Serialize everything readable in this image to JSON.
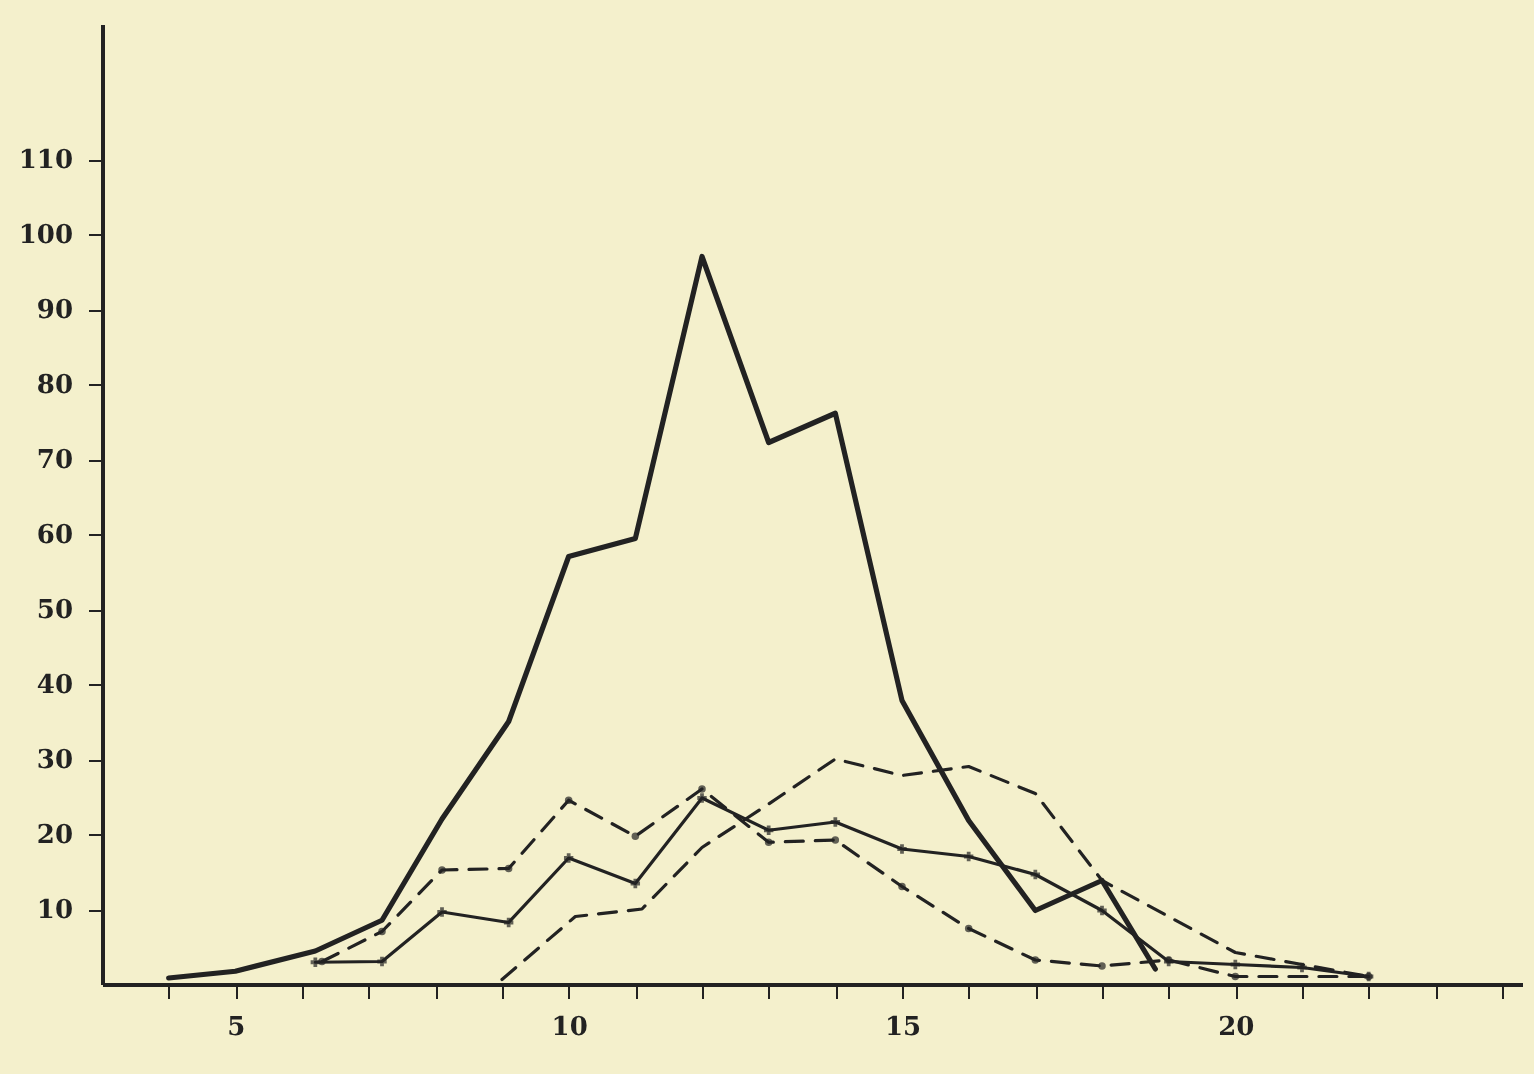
{
  "chart_data": {
    "type": "line",
    "xlim": [
      3,
      24.3
    ],
    "ylim": [
      0,
      128
    ],
    "xticks": [
      {
        "value": 4,
        "label": null
      },
      5,
      {
        "value": 6,
        "label": null
      },
      {
        "value": 7,
        "label": null
      },
      {
        "value": 8,
        "label": null
      },
      {
        "value": 9,
        "label": null
      },
      10,
      {
        "value": 11,
        "label": null
      },
      {
        "value": 12,
        "label": null
      },
      {
        "value": 13,
        "label": null
      },
      {
        "value": 14,
        "label": null
      },
      15,
      {
        "value": 16,
        "label": null
      },
      {
        "value": 17,
        "label": null
      },
      {
        "value": 18,
        "label": null
      },
      {
        "value": 19,
        "label": null
      },
      20,
      {
        "value": 21,
        "label": null
      },
      {
        "value": 22,
        "label": null
      },
      {
        "value": 23,
        "label": null
      },
      {
        "value": 24,
        "label": null
      }
    ],
    "yticks": [
      10,
      20,
      30,
      40,
      50,
      60,
      70,
      80,
      90,
      100,
      110
    ],
    "grid": false,
    "series": [
      {
        "color": "#222222",
        "line_style": "solid",
        "marker": "none",
        "x": [
          4,
          5,
          6.2,
          7.2,
          8.1,
          9.1,
          10,
          11,
          12,
          13,
          14,
          15,
          16,
          17,
          18,
          18.8
        ],
        "values": [
          0.8,
          1.7,
          4.4,
          8.5,
          22,
          35,
          57,
          59.4,
          97,
          72.2,
          76.1,
          37.8,
          21.8,
          9.8,
          13.8,
          2
        ]
      },
      {
        "color": "#222222",
        "line_style": "dashed",
        "marker": "none",
        "x": [
          9,
          10.1,
          11.1,
          12,
          13,
          14,
          15,
          16,
          17,
          18,
          20,
          22
        ],
        "values": [
          0.6,
          9,
          10,
          18.2,
          24,
          30,
          27.8,
          29,
          25.4,
          13.8,
          4.2,
          1
        ]
      },
      {
        "color": "#222222",
        "line_style": "dashed",
        "marker": "circle",
        "x": [
          6.3,
          7.2,
          8.1,
          9.1,
          10,
          11,
          12,
          13,
          14,
          15,
          16,
          17,
          18,
          19,
          20,
          22
        ],
        "values": [
          3,
          7,
          15.2,
          15.4,
          24.5,
          19.7,
          26,
          18.9,
          19.2,
          13,
          7.4,
          3.2,
          2.4,
          3.2,
          1,
          1
        ]
      },
      {
        "color": "#222222",
        "line_style": "solid",
        "marker": "cross",
        "x": [
          6.2,
          7.2,
          8.1,
          9.1,
          10,
          11,
          12,
          13,
          14,
          15,
          16,
          17,
          18,
          19,
          20,
          21,
          22
        ],
        "values": [
          2.9,
          3,
          9.6,
          8.2,
          16.8,
          13.4,
          24.8,
          20.5,
          21.6,
          18,
          17,
          14.6,
          9.8,
          3,
          2.6,
          2.2,
          1
        ]
      }
    ]
  }
}
